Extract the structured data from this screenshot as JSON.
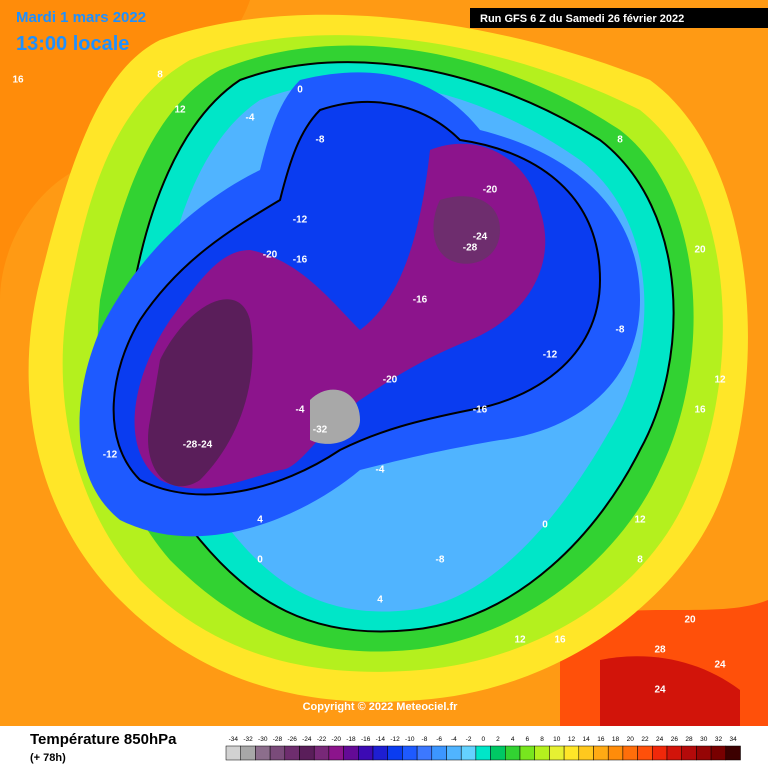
{
  "header": {
    "date": "Mardi 1 mars 2022",
    "time": "13:00 locale",
    "run": "Run GFS 6 Z du Samedi 26 février 2022"
  },
  "copyright": "Copyright © 2022 Meteociel.fr",
  "footer": {
    "title": "Température 850hPa",
    "lead": "(+ 78h)"
  },
  "legend": {
    "values": [
      -34,
      -32,
      -30,
      -28,
      -26,
      -24,
      -22,
      -20,
      -18,
      -16,
      -14,
      -12,
      -10,
      -8,
      -6,
      -4,
      -2,
      0,
      2,
      4,
      6,
      8,
      10,
      12,
      14,
      16,
      18,
      20,
      22,
      24,
      26,
      28,
      30,
      32,
      34
    ],
    "colors": [
      "#d2d2d2",
      "#a8a8a8",
      "#8c6e8c",
      "#7a4b7a",
      "#6e2d6e",
      "#5a1e5a",
      "#782878",
      "#8c148c",
      "#640a96",
      "#3c0ab4",
      "#1e1ed2",
      "#0a3cf0",
      "#1e5aff",
      "#3c78ff",
      "#3c96ff",
      "#50b4ff",
      "#64d2ff",
      "#00e6c8",
      "#00c864",
      "#32d232",
      "#78e61e",
      "#b4f01e",
      "#e6f032",
      "#ffe628",
      "#ffc81e",
      "#ffaa14",
      "#ff8c0a",
      "#ff6e0a",
      "#ff500a",
      "#f0280a",
      "#d2140a",
      "#b40a0a",
      "#960505",
      "#780000",
      "#3c0000"
    ]
  },
  "labels": [
    "16",
    "12",
    "8",
    "4",
    "0",
    "-4",
    "-8",
    "-12",
    "-16",
    "-20",
    "-24",
    "-28",
    "-32",
    "-20",
    "-16",
    "-12",
    "-8",
    "-4",
    "0",
    "4",
    "8",
    "12",
    "16",
    "20",
    "24",
    "28",
    "24",
    "20",
    "16",
    "12",
    "8",
    "-12",
    "-20",
    "-28",
    "-24",
    "-16",
    "-8",
    "-4",
    "0",
    "12"
  ]
}
